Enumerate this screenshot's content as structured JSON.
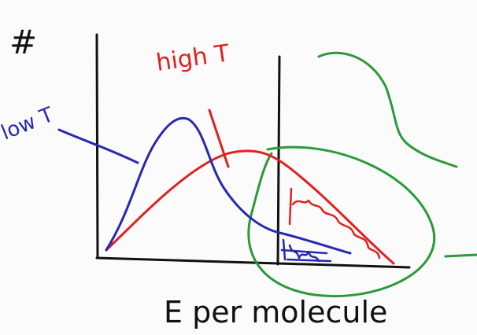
{
  "axes": {
    "y_label": "#",
    "x_label": "E per molecule"
  },
  "curves": [
    {
      "label": "high T"
    },
    {
      "label": "low T"
    }
  ]
}
